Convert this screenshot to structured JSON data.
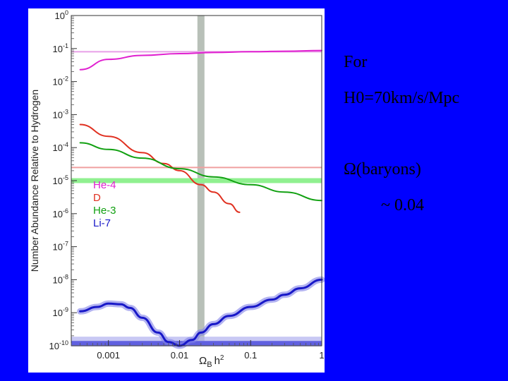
{
  "slide": {
    "notes": [
      "For",
      "H0=70km/s/Mpc",
      "Ω(baryons)",
      "~ 0.04"
    ]
  },
  "colors": {
    "background": "#0000ff",
    "he4": "#e020d0",
    "d": "#e03020",
    "he3": "#10a010",
    "li7": "#1818c8",
    "omega_band": "#b8c0b8"
  },
  "chart_data": {
    "type": "line",
    "title": "",
    "xlabel": "Ω_B h^2",
    "ylabel": "Number Abundance Relative to Hydrogen",
    "xscale": "log",
    "yscale": "log",
    "xlim": [
      0.0003,
      1
    ],
    "ylim": [
      1e-10,
      1
    ],
    "x_ticks": [
      {
        "value": 0.001,
        "label": "0.001"
      },
      {
        "value": 0.01,
        "label": "0.01"
      },
      {
        "value": 0.1,
        "label": "0.1"
      },
      {
        "value": 1,
        "label": "1"
      }
    ],
    "y_ticks": [
      {
        "exp": 0,
        "label": "10^0"
      },
      {
        "exp": -1,
        "label": "10^-1"
      },
      {
        "exp": -2,
        "label": "10^-2"
      },
      {
        "exp": -3,
        "label": "10^-3"
      },
      {
        "exp": -4,
        "label": "10^-4"
      },
      {
        "exp": -5,
        "label": "10^-5"
      },
      {
        "exp": -6,
        "label": "10^-6"
      },
      {
        "exp": -7,
        "label": "10^-7"
      },
      {
        "exp": -8,
        "label": "10^-8"
      },
      {
        "exp": -9,
        "label": "10^-9"
      },
      {
        "exp": -10,
        "label": "10^-10"
      }
    ],
    "legend": [
      "He-4",
      "D",
      "He-3",
      "Li-7"
    ],
    "legend_position": "center-left",
    "series": [
      {
        "name": "He-4",
        "x": [
          0.0004,
          0.001,
          0.003,
          0.01,
          0.03,
          0.1,
          0.3,
          1
        ],
        "y": [
          0.023,
          0.047,
          0.062,
          0.07,
          0.076,
          0.08,
          0.083,
          0.087
        ]
      },
      {
        "name": "D",
        "x": [
          0.0004,
          0.001,
          0.003,
          0.006,
          0.01,
          0.02,
          0.03,
          0.05,
          0.07
        ],
        "y": [
          0.0005,
          0.00022,
          7e-05,
          3.3e-05,
          2e-05,
          7.5e-06,
          4.5e-06,
          2e-06,
          1.1e-06
        ]
      },
      {
        "name": "He-3",
        "x": [
          0.0004,
          0.001,
          0.003,
          0.01,
          0.03,
          0.1,
          0.3,
          1
        ],
        "y": [
          0.00014,
          8.8e-05,
          4.8e-05,
          2.3e-05,
          1.3e-05,
          7.5e-06,
          4.5e-06,
          2.5e-06
        ]
      },
      {
        "name": "Li-7",
        "x": [
          0.0004,
          0.0007,
          0.001,
          0.0015,
          0.002,
          0.003,
          0.005,
          0.007,
          0.01,
          0.015,
          0.02,
          0.03,
          0.05,
          0.1,
          0.2,
          0.3,
          0.5,
          1
        ],
        "y": [
          1.1e-09,
          1.5e-09,
          1.9e-09,
          1.8e-09,
          1.4e-09,
          7e-10,
          2.5e-10,
          1.3e-10,
          1e-10,
          1.5e-10,
          2.5e-10,
          4.5e-10,
          8e-10,
          1.5e-09,
          2.5e-09,
          3.5e-09,
          5.5e-09,
          1e-08
        ]
      }
    ],
    "observed_bands": [
      {
        "name": "He-4",
        "y": 0.08,
        "color": "#e8a0e8"
      },
      {
        "name": "D",
        "y": 2.5e-05,
        "color": "#f0a0a0"
      },
      {
        "name": "He-3",
        "y": 1e-05,
        "color": "#90f090"
      },
      {
        "name": "Li-7",
        "y": 1.2e-10,
        "color": "#8080f0"
      }
    ],
    "omega_b_band": 0.02
  }
}
